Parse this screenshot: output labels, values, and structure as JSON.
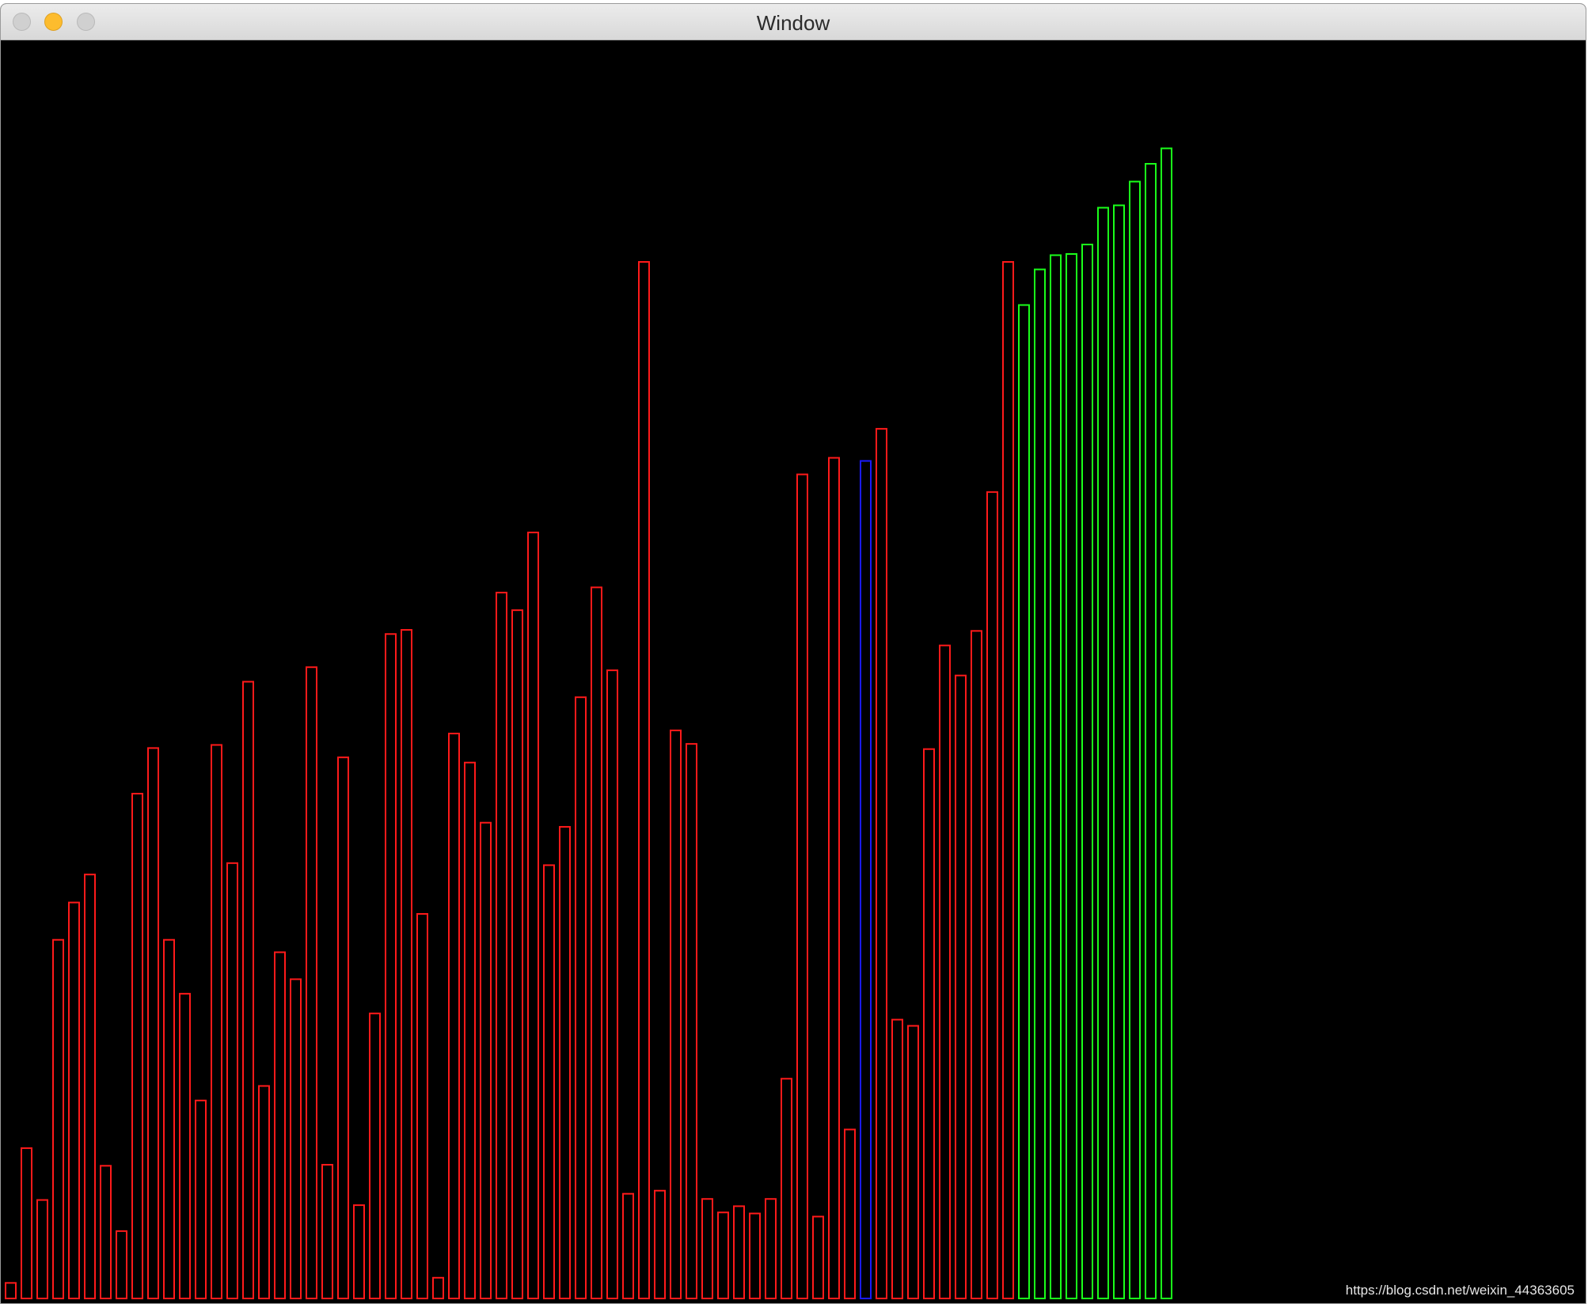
{
  "window": {
    "title": "Window"
  },
  "watermark": "https://blog.csdn.net/weixin_44363605",
  "colors": {
    "unsorted": "#ff1a1a",
    "active": "#1a1aff",
    "sorted": "#1aff1a",
    "background": "#000000"
  },
  "chart_data": {
    "type": "bar",
    "grid": false,
    "ylim": [
      0,
      1000
    ],
    "values": [
      15,
      145,
      95,
      346,
      382,
      409,
      128,
      65,
      487,
      531,
      346,
      294,
      191,
      534,
      420,
      595,
      205,
      334,
      308,
      609,
      129,
      522,
      90,
      275,
      641,
      645,
      371,
      20,
      545,
      517,
      459,
      681,
      664,
      739,
      418,
      455,
      580,
      686,
      606,
      101,
      1000,
      104,
      548,
      535,
      96,
      83,
      89,
      82,
      96,
      212,
      795,
      79,
      811,
      163,
      808,
      839,
      269,
      263,
      530,
      630,
      601,
      644,
      778,
      1000
    ],
    "colors": [
      "r",
      "r",
      "r",
      "r",
      "r",
      "r",
      "r",
      "r",
      "r",
      "r",
      "r",
      "r",
      "r",
      "r",
      "r",
      "r",
      "r",
      "r",
      "r",
      "r",
      "r",
      "r",
      "r",
      "r",
      "r",
      "r",
      "r",
      "r",
      "r",
      "r",
      "r",
      "r",
      "r",
      "r",
      "r",
      "r",
      "r",
      "r",
      "r",
      "r",
      "r",
      "r",
      "r",
      "r",
      "r",
      "r",
      "r",
      "r",
      "r",
      "r",
      "r",
      "r",
      "r",
      "r",
      "b",
      "r",
      "r",
      "r",
      "r",
      "r",
      "r",
      "r",
      "r",
      "r"
    ]
  }
}
